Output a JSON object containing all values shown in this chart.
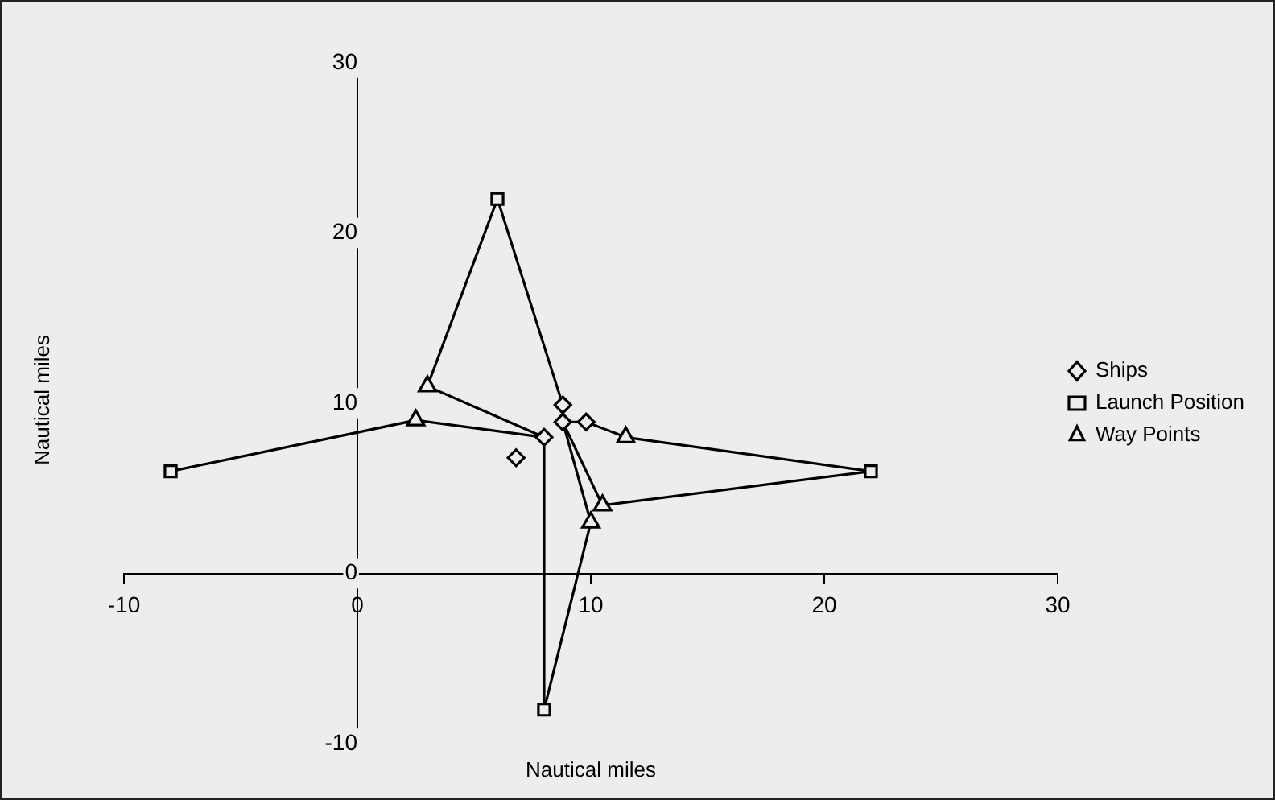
{
  "chart_data": {
    "type": "scatter",
    "xlabel": "Nautical miles",
    "ylabel": "Nautical miles",
    "xlim": [
      -10,
      30
    ],
    "xticks": [
      -10,
      0,
      10,
      20,
      30
    ],
    "ylim": [
      -10,
      30
    ],
    "yticks": [
      -10,
      0,
      10,
      20,
      30
    ],
    "grid": false,
    "legend": "right",
    "series": [
      {
        "type": "line",
        "color": "#000000",
        "marker": "none",
        "x": [
          -8,
          2.5,
          8,
          8,
          10,
          8.8
        ],
        "values": [
          6,
          9,
          8,
          -8,
          3,
          8.9
        ]
      },
      {
        "type": "line",
        "color": "#000000",
        "marker": "none",
        "x": [
          6,
          3,
          8
        ],
        "values": [
          22,
          11,
          8
        ]
      },
      {
        "type": "line",
        "color": "#000000",
        "marker": "none",
        "x": [
          6,
          8.8,
          8.8,
          10.5,
          22
        ],
        "values": [
          22,
          9.9,
          8.9,
          4,
          6
        ]
      },
      {
        "type": "line",
        "color": "#000000",
        "marker": "none",
        "x": [
          22,
          11.5,
          9.8,
          8.8
        ],
        "values": [
          6,
          8,
          8.9,
          8.9
        ]
      },
      {
        "type": "scatter",
        "name": "Ships",
        "color": "#000000",
        "marker": "diamond",
        "x": [
          6.8,
          8,
          8.8,
          8.8,
          9.8
        ],
        "values": [
          6.8,
          8,
          9.9,
          8.9,
          8.9
        ]
      },
      {
        "type": "scatter",
        "name": "Launch Position",
        "color": "#000000",
        "marker": "square",
        "x": [
          -8,
          6,
          22,
          8
        ],
        "values": [
          6,
          22,
          6,
          -8
        ]
      },
      {
        "type": "scatter",
        "name": "Way Points",
        "color": "#000000",
        "marker": "triangle",
        "x": [
          3,
          2.5,
          11.5,
          10.5,
          10
        ],
        "values": [
          11,
          9,
          8,
          4,
          3
        ]
      }
    ]
  }
}
